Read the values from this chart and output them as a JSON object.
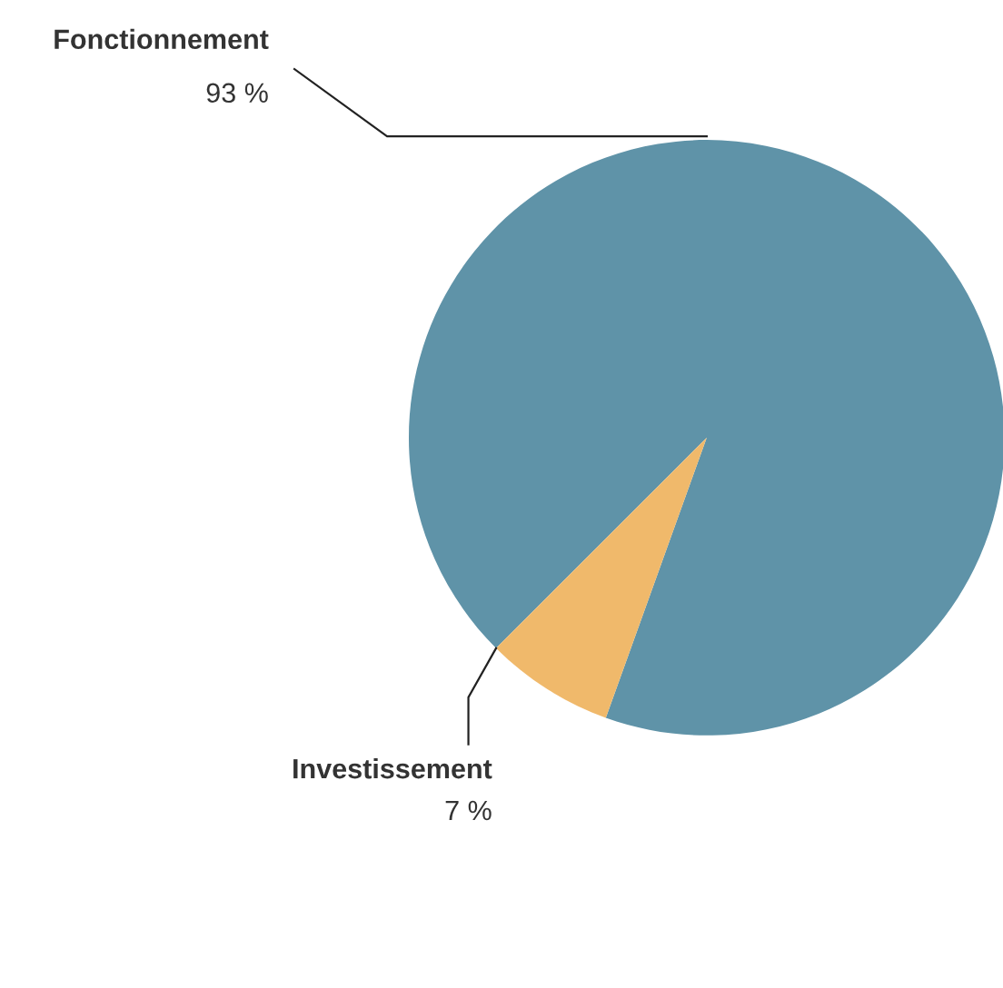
{
  "chart_data": {
    "type": "pie",
    "categories": [
      "Fonctionnement",
      "Investissement"
    ],
    "values": [
      93,
      7
    ],
    "colors": [
      "#5f93a8",
      "#f0b96b"
    ],
    "value_labels": [
      "93 %",
      "7 %"
    ]
  }
}
